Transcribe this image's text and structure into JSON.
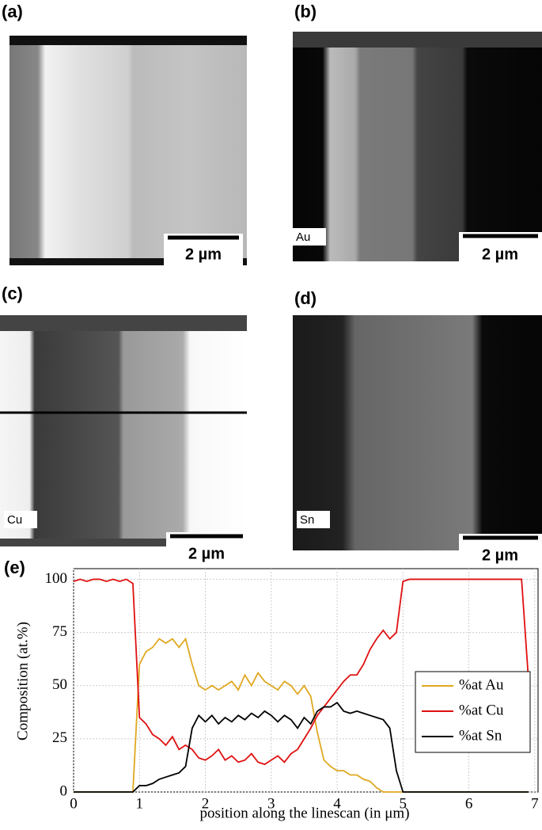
{
  "panels": [
    {
      "label": "(a)",
      "scale": "2 µm"
    },
    {
      "label": "(b)",
      "element": "Au",
      "scale": "2 µm"
    },
    {
      "label": "(c)",
      "element": "Cu",
      "scale": "2 µm"
    },
    {
      "label": "(d)",
      "element": "Sn",
      "scale": "2 µm"
    }
  ],
  "chart_data": {
    "type": "line",
    "label": "(e)",
    "y_label": "Composition (at.%)",
    "x_label": "position along the linescan (in μm)",
    "x": [
      0,
      0.1,
      0.2,
      0.3,
      0.4,
      0.5,
      0.6,
      0.7,
      0.8,
      0.9,
      1,
      1.1,
      1.2,
      1.3,
      1.4,
      1.5,
      1.6,
      1.7,
      1.8,
      1.9,
      2,
      2.1,
      2.2,
      2.3,
      2.4,
      2.5,
      2.6,
      2.7,
      2.8,
      2.9,
      3,
      3.1,
      3.2,
      3.3,
      3.4,
      3.5,
      3.6,
      3.7,
      3.8,
      3.9,
      4,
      4.1,
      4.2,
      4.3,
      4.4,
      4.5,
      4.6,
      4.7,
      4.8,
      4.9,
      5,
      5.1,
      5.2,
      5.3,
      5.4,
      5.5,
      5.6,
      5.7,
      5.8,
      5.9,
      6,
      6.1,
      6.2,
      6.3,
      6.4,
      6.5,
      6.6,
      6.7,
      6.8,
      6.9
    ],
    "series": [
      {
        "name": "%at Au",
        "color": "#e0a820",
        "values": [
          0,
          0,
          0,
          0,
          0,
          0,
          0,
          0,
          0,
          0,
          60,
          66,
          68,
          72,
          70,
          72,
          68,
          72,
          60,
          50,
          48,
          50,
          48,
          50,
          52,
          48,
          55,
          50,
          56,
          52,
          50,
          48,
          52,
          50,
          46,
          50,
          45,
          28,
          15,
          12,
          10,
          10,
          8,
          8,
          6,
          5,
          2,
          0,
          0,
          0,
          0,
          0,
          0,
          0,
          0,
          0,
          0,
          0,
          0,
          0,
          0,
          0,
          0,
          0,
          0,
          0,
          0,
          0,
          0,
          0
        ]
      },
      {
        "name": "%at Cu",
        "color": "#e01010",
        "values": [
          99,
          100,
          99,
          100,
          100,
          99,
          100,
          99,
          100,
          98,
          35,
          32,
          27,
          25,
          22,
          26,
          20,
          22,
          20,
          16,
          15,
          17,
          20,
          15,
          17,
          14,
          15,
          18,
          14,
          13,
          15,
          17,
          14,
          18,
          20,
          25,
          30,
          36,
          40,
          44,
          48,
          52,
          55,
          55,
          60,
          67,
          72,
          76,
          72,
          75,
          99,
          100,
          100,
          100,
          100,
          100,
          100,
          100,
          100,
          100,
          100,
          100,
          100,
          100,
          100,
          100,
          100,
          100,
          100,
          55
        ]
      },
      {
        "name": "%at Sn",
        "color": "#000000",
        "values": [
          0,
          0,
          0,
          0,
          0,
          0,
          0,
          0,
          0,
          0,
          3,
          3,
          4,
          6,
          7,
          8,
          9,
          12,
          30,
          36,
          33,
          36,
          32,
          35,
          33,
          36,
          34,
          37,
          35,
          38,
          36,
          33,
          36,
          34,
          30,
          35,
          32,
          38,
          40,
          40,
          42,
          38,
          37,
          38,
          37,
          36,
          35,
          34,
          30,
          10,
          0,
          0,
          0,
          0,
          0,
          0,
          0,
          0,
          0,
          0,
          0,
          0,
          0,
          0,
          0,
          0,
          0,
          0,
          0,
          0
        ]
      }
    ],
    "xlim": [
      0,
      7.05
    ],
    "ylim": [
      0,
      105
    ],
    "xticks": [
      0,
      1,
      2,
      3,
      4,
      5,
      6,
      7
    ],
    "yticks": [
      0,
      25,
      50,
      75,
      100
    ],
    "grid": true,
    "legend": "right"
  }
}
